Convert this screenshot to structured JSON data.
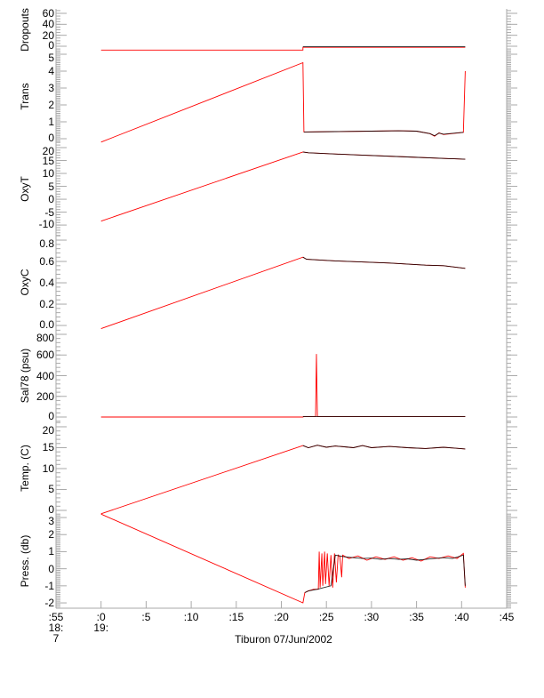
{
  "chart_data": {
    "type": "line",
    "xlabel": "Tiburon 07/Jun/2002",
    "xlim": [
      -5,
      45
    ],
    "x_ticks": [
      {
        "v": -5,
        "lines": [
          ":55",
          "18:",
          "7"
        ]
      },
      {
        "v": 0,
        "lines": [
          ":0",
          "19:"
        ]
      },
      {
        "v": 5,
        "lines": [
          ":5"
        ]
      },
      {
        "v": 10,
        "lines": [
          ":10"
        ]
      },
      {
        "v": 15,
        "lines": [
          ":15"
        ]
      },
      {
        "v": 20,
        "lines": [
          ":20"
        ]
      },
      {
        "v": 25,
        "lines": [
          ":25"
        ]
      },
      {
        "v": 30,
        "lines": [
          ":30"
        ]
      },
      {
        "v": 35,
        "lines": [
          ":35"
        ]
      },
      {
        "v": 40,
        "lines": [
          ":40"
        ]
      },
      {
        "v": 45,
        "lines": [
          ":45"
        ]
      }
    ],
    "colors": {
      "raw": "#ff0000",
      "filtered": "#000000",
      "axis": "#aaaaaa"
    },
    "panels": [
      {
        "ylabel": "Dropouts",
        "ylim": [
          -8.1,
          68.1
        ],
        "ticks": [
          0,
          20,
          40,
          60
        ],
        "tick_labels": [
          "0",
          "20",
          "40",
          "60"
        ],
        "minor": 5,
        "raw": [
          [
            0,
            -7
          ],
          [
            22.4,
            -7
          ],
          [
            22.4,
            -2
          ],
          [
            40.4,
            -2
          ]
        ],
        "filtered": [
          [
            22.4,
            -1
          ],
          [
            40.4,
            -1
          ]
        ]
      },
      {
        "ylabel": "Trans",
        "ylim": [
          -0.21,
          5.21
        ],
        "ticks": [
          0,
          1,
          2,
          3,
          4,
          5
        ],
        "tick_labels": [
          "0",
          "1",
          "2",
          "3",
          "4",
          "5"
        ],
        "minor": 0.1,
        "raw": [
          [
            0,
            -0.2
          ],
          [
            22.4,
            4.5
          ],
          [
            22.5,
            0.4
          ],
          [
            26,
            0.42
          ],
          [
            30,
            0.45
          ],
          [
            33,
            0.47
          ],
          [
            35,
            0.45
          ],
          [
            36.5,
            0.3
          ],
          [
            37,
            0.15
          ],
          [
            37.5,
            0.35
          ],
          [
            38,
            0.25
          ],
          [
            40.2,
            0.38
          ],
          [
            40.4,
            4.0
          ]
        ],
        "filtered": [
          [
            22.5,
            0.4
          ],
          [
            26,
            0.42
          ],
          [
            30,
            0.45
          ],
          [
            33,
            0.47
          ],
          [
            35,
            0.45
          ],
          [
            36.5,
            0.3
          ],
          [
            37,
            0.18
          ],
          [
            37.5,
            0.33
          ],
          [
            38,
            0.27
          ],
          [
            40.2,
            0.38
          ]
        ]
      },
      {
        "ylabel": "OxyT",
        "ylim": [
          -14.1,
          22.07
        ],
        "ticks": [
          -10,
          -5,
          0,
          5,
          10,
          15,
          20
        ],
        "tick_labels": [
          "-10",
          "-5",
          "0",
          "5",
          "10",
          "15",
          "20"
        ],
        "minor": 1,
        "raw": [
          [
            0,
            -8.5
          ],
          [
            22.4,
            18.3
          ],
          [
            23,
            18
          ],
          [
            28,
            17.2
          ],
          [
            34,
            16.4
          ],
          [
            40.4,
            15.5
          ]
        ],
        "filtered": [
          [
            22.4,
            18.3
          ],
          [
            23,
            18
          ],
          [
            28,
            17.2
          ],
          [
            34,
            16.4
          ],
          [
            40.4,
            15.5
          ]
        ]
      },
      {
        "ylabel": "OxyC",
        "ylim": [
          -0.033,
          0.842
        ],
        "ticks": [
          0,
          0.2,
          0.4,
          0.6,
          0.8
        ],
        "tick_labels": [
          "0.0",
          "0.2",
          "0.4",
          "0.6",
          "0.8"
        ],
        "minor": 0.04,
        "raw": [
          [
            0,
            -0.03
          ],
          [
            22.4,
            0.64
          ],
          [
            22.8,
            0.62
          ],
          [
            26,
            0.605
          ],
          [
            32,
            0.585
          ],
          [
            36,
            0.565
          ],
          [
            38,
            0.56
          ],
          [
            40.4,
            0.535
          ]
        ],
        "filtered": [
          [
            22.4,
            0.64
          ],
          [
            22.8,
            0.62
          ],
          [
            26,
            0.605
          ],
          [
            32,
            0.585
          ],
          [
            36,
            0.565
          ],
          [
            38,
            0.56
          ],
          [
            40.4,
            0.535
          ]
        ]
      },
      {
        "ylabel": "Sal78 (psu)",
        "ylim": [
          -51.6,
          851.6
        ],
        "ticks": [
          0,
          200,
          400,
          600,
          800
        ],
        "tick_labels": [
          "0",
          "200",
          "400",
          "600",
          "800"
        ],
        "minor": 40,
        "raw": [
          [
            0,
            0
          ],
          [
            22.4,
            0
          ],
          [
            22.5,
            5
          ],
          [
            23.8,
            5
          ],
          [
            23.9,
            610
          ],
          [
            24.0,
            5
          ],
          [
            40.4,
            5
          ]
        ],
        "filtered": [
          [
            22.4,
            5
          ],
          [
            40.4,
            5
          ]
        ]
      },
      {
        "ylabel": "Temp. (C)",
        "ylim": [
          -0.85,
          21.06
        ],
        "ticks": [
          0,
          5,
          10,
          15,
          20
        ],
        "tick_labels": [
          "0",
          "5",
          "10",
          "15",
          "20"
        ],
        "minor": 1,
        "raw": [
          [
            0,
            -0.8
          ],
          [
            22.4,
            15.5
          ],
          [
            23,
            15
          ],
          [
            24,
            15.6
          ],
          [
            25,
            15.1
          ],
          [
            26,
            15.4
          ],
          [
            27,
            15.2
          ],
          [
            28,
            15
          ],
          [
            29,
            15.5
          ],
          [
            30,
            15
          ],
          [
            32,
            15.3
          ],
          [
            34,
            15
          ],
          [
            36,
            14.8
          ],
          [
            38,
            15.1
          ],
          [
            40.4,
            14.7
          ]
        ],
        "filtered": [
          [
            22.4,
            15.5
          ],
          [
            23,
            15
          ],
          [
            24,
            15.6
          ],
          [
            25,
            15.1
          ],
          [
            26,
            15.4
          ],
          [
            27,
            15.2
          ],
          [
            28,
            15
          ],
          [
            29,
            15.5
          ],
          [
            30,
            15
          ],
          [
            32,
            15.3
          ],
          [
            34,
            15
          ],
          [
            36,
            14.8
          ],
          [
            38,
            15.1
          ],
          [
            40.4,
            14.7
          ]
        ]
      },
      {
        "ylabel": "Press. (db)",
        "ylim": [
          -2.31,
          3.21
        ],
        "ticks": [
          -2,
          -1,
          0,
          1,
          2,
          3
        ],
        "tick_labels": [
          "-2",
          "-1",
          "0",
          "1",
          "2",
          "3"
        ],
        "minor": 0.1,
        "raw": [
          [
            0,
            3.2
          ],
          [
            22.4,
            -2.0
          ],
          [
            22.6,
            -1.4
          ],
          [
            23,
            -1.3
          ],
          [
            23.6,
            -1.2
          ],
          [
            24.1,
            -1.2
          ],
          [
            24.2,
            1.0
          ],
          [
            24.3,
            -1.1
          ],
          [
            24.5,
            0.9
          ],
          [
            24.6,
            -1.0
          ],
          [
            24.8,
            1.0
          ],
          [
            24.9,
            -0.9
          ],
          [
            25.1,
            0.9
          ],
          [
            25.3,
            -1.0
          ],
          [
            25.5,
            0.8
          ],
          [
            25.7,
            -1.1
          ],
          [
            25.9,
            0.9
          ],
          [
            26.1,
            -0.8
          ],
          [
            26.3,
            0.8
          ],
          [
            26.5,
            0.7
          ],
          [
            26.7,
            -0.5
          ],
          [
            26.8,
            0.8
          ],
          [
            27.5,
            0.6
          ],
          [
            28.5,
            0.75
          ],
          [
            29.5,
            0.5
          ],
          [
            30.5,
            0.7
          ],
          [
            31.5,
            0.55
          ],
          [
            32.5,
            0.7
          ],
          [
            33.5,
            0.5
          ],
          [
            34.5,
            0.65
          ],
          [
            35.5,
            0.45
          ],
          [
            36.5,
            0.7
          ],
          [
            37.5,
            0.6
          ],
          [
            38.5,
            0.75
          ],
          [
            39.5,
            0.6
          ],
          [
            40.2,
            0.9
          ],
          [
            40.4,
            -1.1
          ]
        ],
        "filtered": [
          [
            22.6,
            -1.4
          ],
          [
            23,
            -1.3
          ],
          [
            24,
            -1.2
          ],
          [
            25.5,
            -1.0
          ],
          [
            26,
            0.8
          ],
          [
            27,
            0.7
          ],
          [
            28,
            0.65
          ],
          [
            29,
            0.6
          ],
          [
            30,
            0.62
          ],
          [
            31,
            0.55
          ],
          [
            32,
            0.6
          ],
          [
            33,
            0.55
          ],
          [
            34,
            0.58
          ],
          [
            35,
            0.5
          ],
          [
            36,
            0.55
          ],
          [
            37,
            0.6
          ],
          [
            38,
            0.65
          ],
          [
            39,
            0.6
          ],
          [
            40.2,
            0.8
          ],
          [
            40.4,
            -1.0
          ]
        ]
      }
    ]
  }
}
